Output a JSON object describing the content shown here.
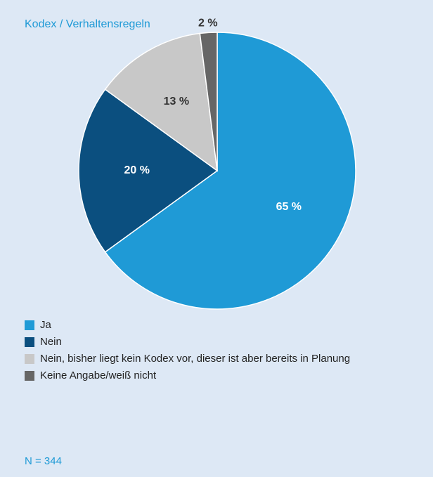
{
  "chart_data": {
    "type": "pie",
    "title": "Kodex / Verhaltensregeln",
    "categories": [
      "Ja",
      "Nein",
      "Nein, bisher liegt kein Kodex vor, dieser ist aber bereits in Planung",
      "Keine Angabe/weiß nicht"
    ],
    "values": [
      65,
      20,
      13,
      2
    ],
    "value_labels": [
      "65 %",
      "20 %",
      "13 %",
      "2 %"
    ],
    "colors": [
      "#1f9ad6",
      "#0b4f7f",
      "#c8c8c8",
      "#666666"
    ],
    "note": "N = 344"
  }
}
